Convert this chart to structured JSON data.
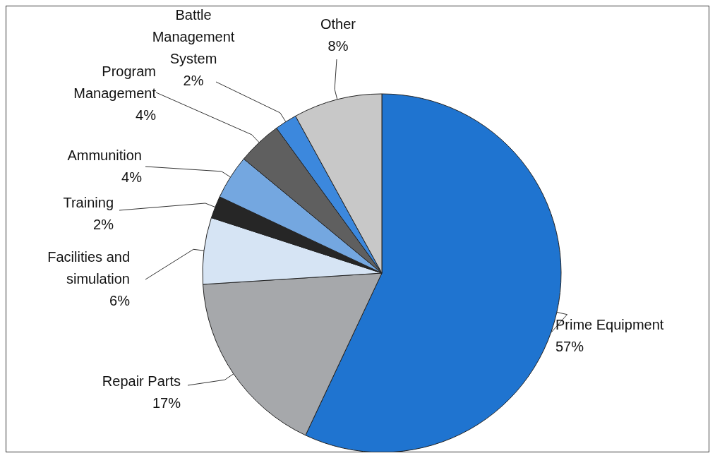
{
  "chart_data": {
    "type": "pie",
    "categories": [
      "Prime Equipment",
      "Repair Parts",
      "Facilities and simulation",
      "Training",
      "Ammunition",
      "Program Management",
      "Battle Management System",
      "Other"
    ],
    "values": [
      57,
      17,
      6,
      2,
      4,
      4,
      2,
      8
    ],
    "value_labels": [
      "57%",
      "17%",
      "6%",
      "2%",
      "4%",
      "4%",
      "2%",
      "8%"
    ],
    "colors": [
      "#1f74d0",
      "#a6a8ab",
      "#d6e4f4",
      "#262626",
      "#74a7e0",
      "#5f5f5f",
      "#3c88dd",
      "#c8c8c8"
    ]
  }
}
